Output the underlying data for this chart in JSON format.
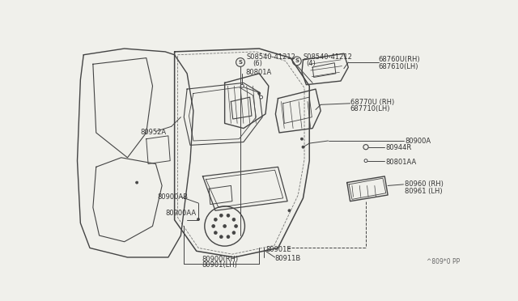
{
  "bg_color": "#f0f0eb",
  "line_color": "#444444",
  "text_color": "#333333",
  "watermark": "^809*0 PP",
  "parts_labels": {
    "s08540_6_text": "S08540-41212",
    "s08540_6_sub": "(6)",
    "s08540_4_text": "S08540-41212",
    "s08540_4_sub": "(4)",
    "p80801A": "80801A",
    "p80952A": "80952A",
    "p68760U": "68760U(RH)",
    "p68761Q": "687610(LH)",
    "p68770U": "68770U (RH)",
    "p68771Q": "687710(LH)",
    "p80900A": "80900A",
    "p80944R": "80944R",
    "p80801AA": "80801AA",
    "p80960": "80960 (RH)",
    "p80961": "80961 (LH)",
    "p80900AB": "80900AB",
    "p80900AA": "80900AA",
    "p80901E": "80901E",
    "p80911B": "80911B",
    "p80900RH": "80900(RH)",
    "p80901LH": "80901(LH)"
  }
}
